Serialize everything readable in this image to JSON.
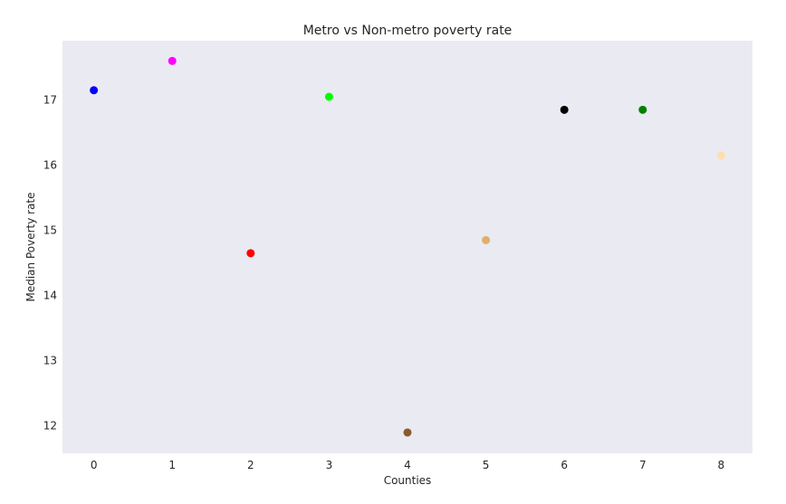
{
  "chart_data": {
    "type": "scatter",
    "title": "Metro vs Non-metro poverty rate",
    "xlabel": "Counties",
    "ylabel": "Median Poverty rate",
    "x": [
      0,
      1,
      2,
      3,
      4,
      5,
      6,
      7,
      8
    ],
    "y": [
      17.15,
      17.6,
      14.65,
      17.05,
      11.9,
      14.85,
      16.85,
      16.85,
      16.15
    ],
    "colors": [
      "#0000ff",
      "#ff00ff",
      "#ff0000",
      "#00ff00",
      "#8b5a2b",
      "#deb06a",
      "#000000",
      "#008000",
      "#ffdead"
    ],
    "xticks": [
      "0",
      "1",
      "2",
      "3",
      "4",
      "5",
      "6",
      "7",
      "8"
    ],
    "yticks": [
      "12",
      "13",
      "14",
      "15",
      "16",
      "17"
    ],
    "xlim": [
      -0.4,
      8.4
    ],
    "ylim": [
      11.58,
      17.91
    ],
    "grid": false,
    "background": "#eaeaf2"
  }
}
